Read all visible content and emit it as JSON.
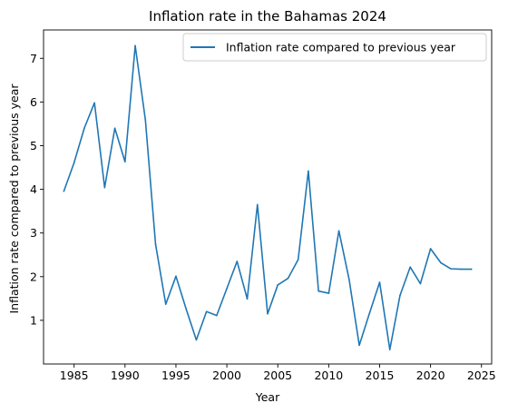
{
  "chart_data": {
    "type": "line",
    "title": "Inflation rate in the Bahamas 2024",
    "xlabel": "Year",
    "ylabel": "Inflation rate compared to previous year",
    "x": [
      1984,
      1985,
      1986,
      1987,
      1988,
      1989,
      1990,
      1991,
      1992,
      1993,
      1994,
      1995,
      1996,
      1997,
      1998,
      1999,
      2000,
      2001,
      2002,
      2003,
      2004,
      2005,
      2006,
      2007,
      2008,
      2009,
      2010,
      2011,
      2012,
      2013,
      2014,
      2015,
      2016,
      2017,
      2018,
      2019,
      2020,
      2021,
      2022,
      2023,
      2024
    ],
    "series": [
      {
        "name": "Inflation rate compared to previous year",
        "color": "#1f77b4",
        "values": [
          3.96,
          4.61,
          5.4,
          5.98,
          4.04,
          5.4,
          4.63,
          7.29,
          5.59,
          2.74,
          1.37,
          2.01,
          1.26,
          0.55,
          1.2,
          1.11,
          1.73,
          2.35,
          1.49,
          3.65,
          1.15,
          1.81,
          1.96,
          2.39,
          4.42,
          1.67,
          1.62,
          3.05,
          1.94,
          0.43,
          1.16,
          1.87,
          0.33,
          1.57,
          2.22,
          1.84,
          2.64,
          2.32,
          2.18,
          2.17,
          2.17
        ]
      }
    ],
    "xticks": [
      1985,
      1990,
      1995,
      2000,
      2005,
      2010,
      2015,
      2020,
      2025
    ],
    "yticks": [
      1,
      2,
      3,
      4,
      5,
      6,
      7
    ],
    "xlim": [
      1982,
      2026
    ],
    "ylim": [
      0.0,
      7.65
    ],
    "grid": false,
    "legend_position": "top-right"
  }
}
